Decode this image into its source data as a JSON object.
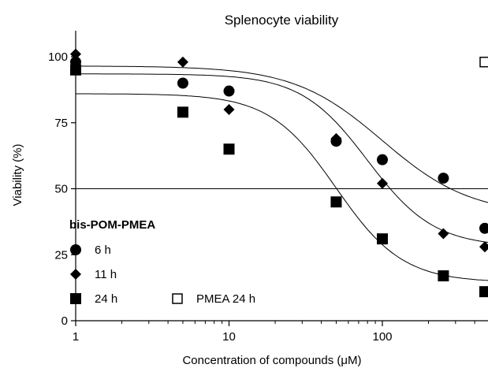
{
  "chart_data": {
    "type": "scatter",
    "title": "Splenocyte viability",
    "xlabel": "Concentration of compounds (μM)",
    "ylabel": "Viability (%)",
    "x_scale": "log",
    "xlim": [
      0.8,
      500
    ],
    "ylim": [
      0,
      110
    ],
    "x_ticks": [
      1,
      10,
      100
    ],
    "x_tick_labels": [
      "1",
      "10",
      "100"
    ],
    "y_ticks": [
      0,
      25,
      50,
      75,
      100
    ],
    "y_tick_labels": [
      "0",
      "25",
      "50",
      "75",
      "100"
    ],
    "reference_line_y": 50,
    "legend": {
      "title": "bis-POM-PMEA",
      "placement": "bottom-left",
      "entries": [
        {
          "label": "6 h",
          "marker": "circle"
        },
        {
          "label": "11 h",
          "marker": "diamond"
        },
        {
          "label": "24 h",
          "marker": "filled-square"
        },
        {
          "label": "PMEA 24 h",
          "marker": "open-square"
        }
      ]
    },
    "series": [
      {
        "name": "6 h",
        "marker": "circle",
        "points": [
          [
            1,
            98
          ],
          [
            5,
            90
          ],
          [
            10,
            87
          ],
          [
            50,
            68
          ],
          [
            100,
            61
          ],
          [
            250,
            54
          ],
          [
            500,
            35
          ]
        ],
        "fit": {
          "top": 96.5,
          "bottom": 40,
          "ec50": 100,
          "hill": 1.5
        }
      },
      {
        "name": "11 h",
        "marker": "diamond",
        "points": [
          [
            1,
            101
          ],
          [
            5,
            98
          ],
          [
            10,
            80
          ],
          [
            50,
            69
          ],
          [
            100,
            52
          ],
          [
            250,
            33
          ],
          [
            500,
            28
          ]
        ],
        "fit": {
          "top": 93.5,
          "bottom": 28,
          "ec50": 80,
          "hill": 2.0
        }
      },
      {
        "name": "24 h",
        "marker": "filled-square",
        "points": [
          [
            1,
            95
          ],
          [
            5,
            79
          ],
          [
            10,
            65
          ],
          [
            50,
            45
          ],
          [
            100,
            31
          ],
          [
            250,
            17
          ],
          [
            500,
            11
          ]
        ],
        "fit": {
          "top": 86,
          "bottom": 14.5,
          "ec50": 50,
          "hill": 2.0
        }
      },
      {
        "name": "PMEA 24 h",
        "marker": "open-square",
        "points": [
          [
            500,
            98
          ]
        ]
      }
    ]
  }
}
